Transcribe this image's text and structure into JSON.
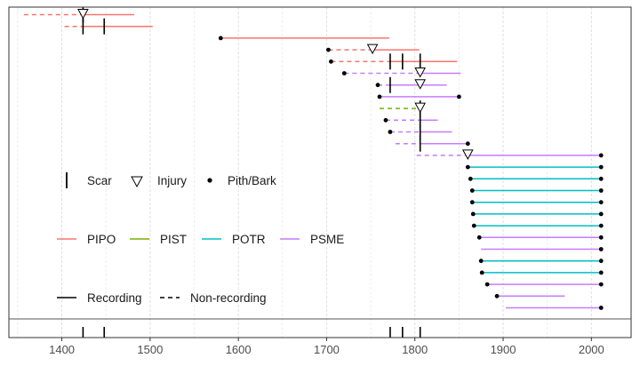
{
  "chart_data": {
    "type": "fire-history",
    "xlim": [
      1340,
      2045
    ],
    "x_ticks": [
      1400,
      1500,
      1600,
      1700,
      1800,
      1900,
      2000
    ],
    "x_tick_labels": [
      "1400",
      "1500",
      "1600",
      "1700",
      "1800",
      "1900",
      "2000"
    ],
    "grid": true,
    "colors": {
      "PIPO": "#F8766D",
      "PIST": "#7CAE00",
      "POTR": "#00BFC4",
      "PSME": "#C77CFF",
      "marker": "#000000"
    },
    "series": [
      {
        "species": "PIPO",
        "segments": [
          {
            "from": 1357,
            "to": 1424,
            "recording": false
          },
          {
            "from": 1424,
            "to": 1482,
            "recording": true
          }
        ],
        "start_marker": "none",
        "end_marker": "none",
        "scars": [
          1424
        ],
        "injuries": [
          1424
        ]
      },
      {
        "species": "PIPO",
        "segments": [
          {
            "from": 1403,
            "to": 1424,
            "recording": false
          },
          {
            "from": 1424,
            "to": 1503,
            "recording": true
          }
        ],
        "start_marker": "none",
        "end_marker": "none",
        "scars": [
          1424,
          1448
        ],
        "injuries": []
      },
      {
        "species": "PIPO",
        "segments": [
          {
            "from": 1580,
            "to": 1771,
            "recording": true
          }
        ],
        "start_marker": "pith",
        "end_marker": "none",
        "scars": [],
        "injuries": []
      },
      {
        "species": "PIPO",
        "segments": [
          {
            "from": 1702,
            "to": 1752,
            "recording": false
          },
          {
            "from": 1752,
            "to": 1805,
            "recording": true
          }
        ],
        "start_marker": "pith",
        "end_marker": "none",
        "scars": [],
        "injuries": [
          1752
        ]
      },
      {
        "species": "PIPO",
        "segments": [
          {
            "from": 1705,
            "to": 1772,
            "recording": false
          },
          {
            "from": 1772,
            "to": 1848,
            "recording": true
          }
        ],
        "start_marker": "pith",
        "end_marker": "none",
        "scars": [
          1772,
          1786,
          1806
        ],
        "injuries": []
      },
      {
        "species": "PSME",
        "segments": [
          {
            "from": 1720,
            "to": 1806,
            "recording": false
          },
          {
            "from": 1806,
            "to": 1852,
            "recording": true
          }
        ],
        "start_marker": "pith",
        "end_marker": "none",
        "scars": [],
        "injuries": [
          1806
        ]
      },
      {
        "species": "PSME",
        "segments": [
          {
            "from": 1758,
            "to": 1772,
            "recording": false
          },
          {
            "from": 1772,
            "to": 1836,
            "recording": true
          }
        ],
        "start_marker": "pith",
        "end_marker": "none",
        "scars": [
          1772
        ],
        "injuries": [
          1806
        ]
      },
      {
        "species": "PSME",
        "segments": [
          {
            "from": 1760,
            "to": 1850,
            "recording": true
          }
        ],
        "start_marker": "pith",
        "end_marker": "bark",
        "scars": [],
        "injuries": []
      },
      {
        "species": "PIST",
        "segments": [
          {
            "from": 1760,
            "to": 1806,
            "recording": false
          }
        ],
        "start_marker": "none",
        "end_marker": "none",
        "scars": [
          1806
        ],
        "injuries": [
          1806
        ]
      },
      {
        "species": "PSME",
        "segments": [
          {
            "from": 1767,
            "to": 1806,
            "recording": false
          },
          {
            "from": 1806,
            "to": 1826,
            "recording": true
          }
        ],
        "start_marker": "pith",
        "end_marker": "none",
        "scars": [
          1806
        ],
        "injuries": []
      },
      {
        "species": "PSME",
        "segments": [
          {
            "from": 1772,
            "to": 1806,
            "recording": false
          },
          {
            "from": 1806,
            "to": 1842,
            "recording": true
          }
        ],
        "start_marker": "pith",
        "end_marker": "none",
        "scars": [
          1806
        ],
        "injuries": []
      },
      {
        "species": "PSME",
        "segments": [
          {
            "from": 1778,
            "to": 1806,
            "recording": false
          },
          {
            "from": 1806,
            "to": 1860,
            "recording": true
          }
        ],
        "start_marker": "none",
        "end_marker": "bark",
        "scars": [
          1806
        ],
        "injuries": []
      },
      {
        "species": "PSME",
        "segments": [
          {
            "from": 1802,
            "to": 1860,
            "recording": false
          },
          {
            "from": 1860,
            "to": 2011,
            "recording": true
          }
        ],
        "start_marker": "none",
        "end_marker": "bark",
        "scars": [],
        "injuries": [
          1860
        ]
      },
      {
        "species": "POTR",
        "segments": [
          {
            "from": 1860,
            "to": 2011,
            "recording": true
          }
        ],
        "start_marker": "pith",
        "end_marker": "bark",
        "scars": [],
        "injuries": []
      },
      {
        "species": "POTR",
        "segments": [
          {
            "from": 1863,
            "to": 2011,
            "recording": true
          }
        ],
        "start_marker": "pith",
        "end_marker": "bark",
        "scars": [],
        "injuries": []
      },
      {
        "species": "POTR",
        "segments": [
          {
            "from": 1865,
            "to": 2011,
            "recording": true
          }
        ],
        "start_marker": "pith",
        "end_marker": "bark",
        "scars": [],
        "injuries": []
      },
      {
        "species": "POTR",
        "segments": [
          {
            "from": 1865,
            "to": 2011,
            "recording": true
          }
        ],
        "start_marker": "pith",
        "end_marker": "bark",
        "scars": [],
        "injuries": []
      },
      {
        "species": "POTR",
        "segments": [
          {
            "from": 1866,
            "to": 2011,
            "recording": true
          }
        ],
        "start_marker": "pith",
        "end_marker": "bark",
        "scars": [],
        "injuries": []
      },
      {
        "species": "POTR",
        "segments": [
          {
            "from": 1867,
            "to": 2011,
            "recording": true
          }
        ],
        "start_marker": "pith",
        "end_marker": "bark",
        "scars": [],
        "injuries": []
      },
      {
        "species": "PSME",
        "segments": [
          {
            "from": 1873,
            "to": 2011,
            "recording": true
          }
        ],
        "start_marker": "pith",
        "end_marker": "bark",
        "scars": [],
        "injuries": []
      },
      {
        "species": "PSME",
        "segments": [
          {
            "from": 1875,
            "to": 2011,
            "recording": true
          }
        ],
        "start_marker": "none",
        "end_marker": "bark",
        "scars": [],
        "injuries": []
      },
      {
        "species": "POTR",
        "segments": [
          {
            "from": 1875,
            "to": 2011,
            "recording": true
          }
        ],
        "start_marker": "pith",
        "end_marker": "bark",
        "scars": [],
        "injuries": []
      },
      {
        "species": "POTR",
        "segments": [
          {
            "from": 1876,
            "to": 2011,
            "recording": true
          }
        ],
        "start_marker": "pith",
        "end_marker": "bark",
        "scars": [],
        "injuries": []
      },
      {
        "species": "PSME",
        "segments": [
          {
            "from": 1882,
            "to": 2011,
            "recording": true
          }
        ],
        "start_marker": "pith",
        "end_marker": "bark",
        "scars": [],
        "injuries": []
      },
      {
        "species": "PSME",
        "segments": [
          {
            "from": 1893,
            "to": 1970,
            "recording": true
          }
        ],
        "start_marker": "pith",
        "end_marker": "none",
        "scars": [],
        "injuries": []
      },
      {
        "species": "PSME",
        "segments": [
          {
            "from": 1903,
            "to": 2011,
            "recording": true
          }
        ],
        "start_marker": "none",
        "end_marker": "bark",
        "scars": [],
        "injuries": []
      }
    ],
    "composite_scars": [
      1424,
      1448,
      1772,
      1786,
      1806
    ],
    "legend": {
      "symbols": [
        {
          "label": "Scar",
          "mark": "bar"
        },
        {
          "label": "Injury",
          "mark": "triangle"
        },
        {
          "label": "Pith/Bark",
          "mark": "dot"
        }
      ],
      "species": [
        {
          "label": "PIPO",
          "color": "#F8766D"
        },
        {
          "label": "PIST",
          "color": "#7CAE00"
        },
        {
          "label": "POTR",
          "color": "#00BFC4"
        },
        {
          "label": "PSME",
          "color": "#C77CFF"
        }
      ],
      "line_types": [
        {
          "label": "Recording",
          "style": "solid"
        },
        {
          "label": "Non-recording",
          "style": "dashed"
        }
      ]
    }
  }
}
